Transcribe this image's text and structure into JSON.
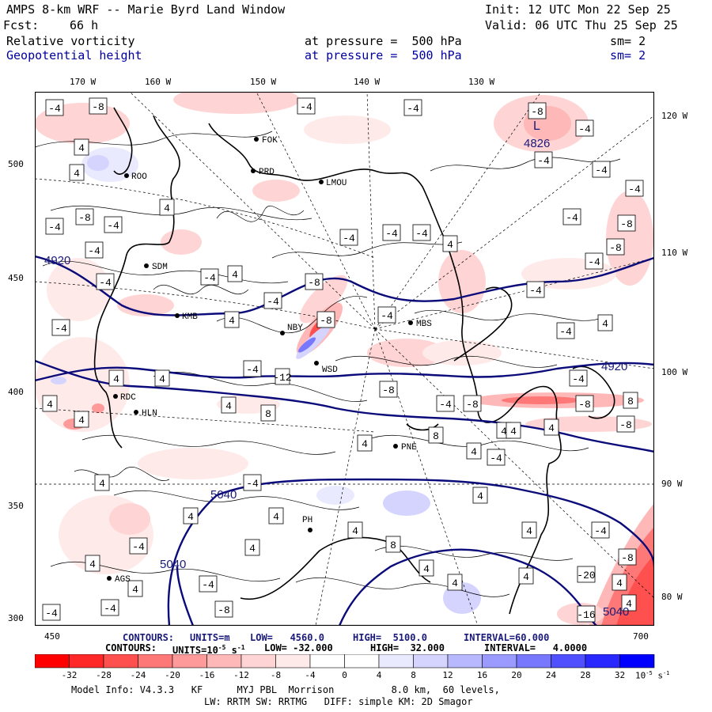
{
  "header": {
    "title": "AMPS 8-km WRF -- Marie Byrd Land Window",
    "init": "Init: 12 UTC Mon 22 Sep 25",
    "fcst_label": "Fcst:",
    "fcst_value": "66 h",
    "valid": "Valid: 06 UTC Thu 25 Sep 25",
    "field1": {
      "name": "Relative vorticity",
      "level": "at pressure =  500 hPa",
      "sm": "sm= 2"
    },
    "field2": {
      "name": "Geopotential height",
      "level": "at pressure =  500 hPa",
      "sm": "sm= 2"
    }
  },
  "axes": {
    "lon_top": [
      "170 W",
      "160 W",
      "150 W",
      "140 W",
      "130 W"
    ],
    "lon_right": [
      "120 W",
      "110 W",
      "100 W",
      "90 W",
      "80 W"
    ],
    "y_ticks": [
      "500",
      "450",
      "400",
      "350",
      "300"
    ],
    "x_ticks": [
      "450",
      "700"
    ]
  },
  "stations": [
    {
      "code": "FOK"
    },
    {
      "code": "PRD"
    },
    {
      "code": "ROO"
    },
    {
      "code": "LMOU"
    },
    {
      "code": "SDM"
    },
    {
      "code": "KMB"
    },
    {
      "code": "NBY"
    },
    {
      "code": "MBS"
    },
    {
      "code": "WSD"
    },
    {
      "code": "RDC"
    },
    {
      "code": "HLN"
    },
    {
      "code": "PNE"
    },
    {
      "code": "PH"
    },
    {
      "code": "AGS"
    }
  ],
  "height_labels": [
    "4920",
    "4920",
    "5040",
    "5040",
    "5040",
    "4826"
  ],
  "low_marker": "L",
  "contour_info": {
    "geo": {
      "label": "CONTOURS:",
      "units": "UNITS=m",
      "low": "LOW=   4560.0",
      "high": "HIGH=  5100.0",
      "interval": "INTERVAL=60.000"
    },
    "vort": {
      "label": "CONTOURS:",
      "units": "UNITS=10",
      "units_exp": "-5",
      "units_tail": "s",
      "units_tail_exp": "-1",
      "low": "LOW= -32.000",
      "high": "HIGH=  32.000",
      "interval": "INTERVAL=   4.0000"
    }
  },
  "colorbar": {
    "labels": [
      "-32",
      "-28",
      "-24",
      "-20",
      "-16",
      "-12",
      "-8",
      "-4",
      "0",
      "4",
      "8",
      "12",
      "16",
      "20",
      "24",
      "28",
      "32"
    ],
    "unit": "10",
    "unit_exp": "-5",
    "unit_tail": "s",
    "unit_tail_exp": "-1",
    "colors": [
      "#ff0000",
      "#ff2828",
      "#ff5050",
      "#ff7878",
      "#ff9a9a",
      "#ffb8b8",
      "#ffd4d4",
      "#ffeaea",
      "#ffffff",
      "#ffffff",
      "#eaeaff",
      "#d4d4ff",
      "#b8b8ff",
      "#9a9aff",
      "#7878ff",
      "#5050ff",
      "#2828ff",
      "#0000ff"
    ]
  },
  "footer": {
    "line1": "Model Info: V4.3.3   KF      MYJ PBL  Morrison          8.0 km,  60 levels,",
    "line2": "LW: RRTM SW: RRTMG   DIFF: simple KM: 2D Smagor"
  }
}
